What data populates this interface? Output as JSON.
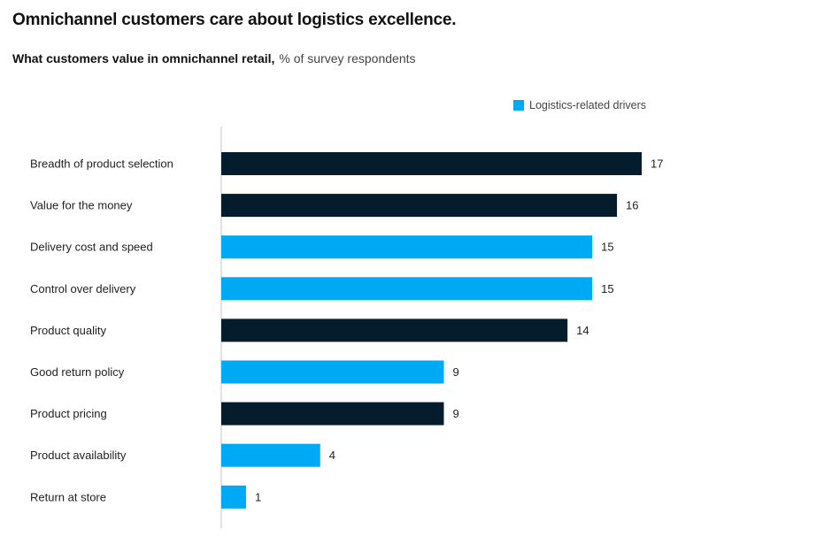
{
  "chart_data": {
    "type": "bar",
    "orientation": "horizontal",
    "title": "Omnichannel customers care about logistics excellence.",
    "subtitle_bold": "What customers value in omnichannel retail,",
    "subtitle_unit": "% of survey respondents",
    "xlabel": "",
    "ylabel": "",
    "xlim": [
      0,
      17
    ],
    "grid": false,
    "legend": {
      "position": "top-right",
      "entries": [
        {
          "label": "Logistics-related drivers",
          "color": "#00A9F4"
        }
      ]
    },
    "colors": {
      "logistics": "#00A9F4",
      "other": "#051C2C",
      "axis": "#D9D9D9"
    },
    "categories": [
      "Breadth of product selection",
      "Value for the money",
      "Delivery cost and speed",
      "Control over delivery",
      "Product quality",
      "Good return policy",
      "Product pricing",
      "Product availability",
      "Return at store"
    ],
    "values": [
      17,
      16,
      15,
      15,
      14,
      9,
      9,
      4,
      1
    ],
    "logistics_related": [
      false,
      false,
      true,
      true,
      false,
      true,
      false,
      true,
      true
    ]
  }
}
